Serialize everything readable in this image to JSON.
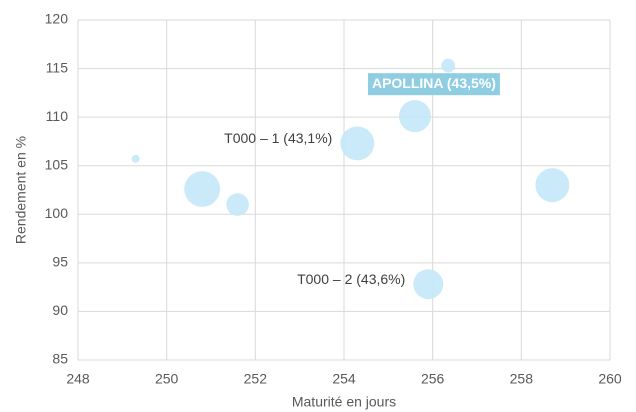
{
  "chart_data": {
    "type": "bubble",
    "x_label": "Maturité en jours",
    "y_label": "Rendement en %",
    "x": [
      249.3,
      250.8,
      251.6,
      254.3,
      255.6,
      256.35,
      255.9,
      258.7
    ],
    "values": [
      105.7,
      102.6,
      101.0,
      107.3,
      110.1,
      115.3,
      92.8,
      103.0
    ],
    "sizes": [
      1,
      20,
      8,
      18,
      16,
      3,
      14,
      18
    ],
    "point_labels": [
      null,
      null,
      null,
      "T000 – 1 (43,1%)",
      "APOLLINA (43,5%)",
      null,
      "T000 – 2 (43,6%)",
      null
    ],
    "color": "#c4e8f8",
    "highlight_color": "#8ecde2",
    "xlim": [
      248,
      260
    ],
    "xticks": [
      248,
      250,
      252,
      254,
      256,
      258,
      260
    ],
    "ylim": [
      85,
      120
    ],
    "yticks": [
      85,
      90,
      95,
      100,
      105,
      110,
      115,
      120
    ],
    "grid": true
  }
}
